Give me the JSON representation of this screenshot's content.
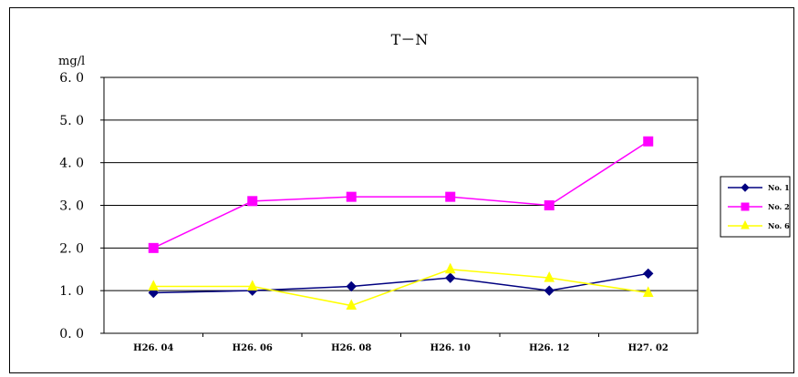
{
  "chart_data": {
    "type": "line",
    "title": "T－N",
    "ylabel": "mg/l",
    "xlabel": "",
    "categories": [
      "H26. 04",
      "H26. 06",
      "H26. 08",
      "H26. 10",
      "H26. 12",
      "H27. 02"
    ],
    "ylim": [
      0,
      6
    ],
    "yticks": [
      "0. 0",
      "1. 0",
      "2. 0",
      "3. 0",
      "4. 0",
      "5. 0",
      "6. 0"
    ],
    "grid": true,
    "legend_position": "right",
    "series": [
      {
        "name": "No. 1",
        "marker": "diamond",
        "color": "#000080",
        "values": [
          0.95,
          1.0,
          1.1,
          1.3,
          1.0,
          1.4
        ]
      },
      {
        "name": "No. 2",
        "marker": "square",
        "color": "#ff00ff",
        "values": [
          2.0,
          3.1,
          3.2,
          3.2,
          3.0,
          4.5
        ]
      },
      {
        "name": "No. 6",
        "marker": "triangle",
        "color": "#ffff00",
        "values": [
          1.1,
          1.1,
          0.65,
          1.5,
          1.3,
          0.95
        ]
      }
    ]
  }
}
